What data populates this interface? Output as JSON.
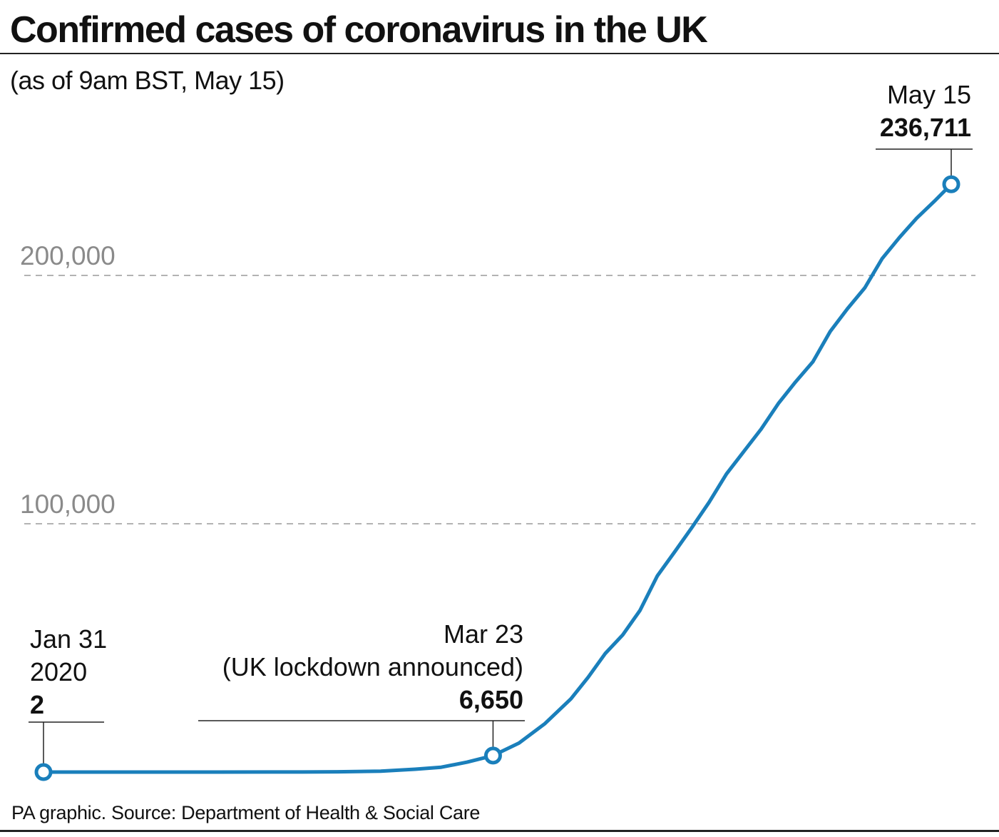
{
  "title": "Confirmed cases of coronavirus in the UK",
  "subtitle": "(as of 9am BST, May 15)",
  "source": "PA graphic. Source: Department of Health & Social Care",
  "colors": {
    "line": "#1a7fbb",
    "grid": "#9a9a9a",
    "tick_text": "#8a8a8a",
    "text": "#111111"
  },
  "chart_data": {
    "type": "line",
    "title": "Confirmed cases of coronavirus in the UK",
    "subtitle": "(as of 9am BST, May 15)",
    "xlabel": "",
    "ylabel": "",
    "x_range": [
      "2020-01-31",
      "2020-05-15"
    ],
    "ylim": [
      0,
      250000
    ],
    "yticks": [
      100000,
      200000
    ],
    "ytick_labels": [
      "100,000",
      "200,000"
    ],
    "grid": "dashed horizontal lines at y ticks",
    "legend": "none",
    "series": [
      {
        "x": [
          "2020-01-31",
          "2020-02-10",
          "2020-02-20",
          "2020-03-01",
          "2020-03-05",
          "2020-03-10",
          "2020-03-14",
          "2020-03-17",
          "2020-03-20",
          "2020-03-23",
          "2020-03-26",
          "2020-03-29",
          "2020-04-01",
          "2020-04-03",
          "2020-04-05",
          "2020-04-07",
          "2020-04-09",
          "2020-04-11",
          "2020-04-13",
          "2020-04-15",
          "2020-04-17",
          "2020-04-19",
          "2020-04-21",
          "2020-04-23",
          "2020-04-25",
          "2020-04-27",
          "2020-04-29",
          "2020-05-01",
          "2020-05-03",
          "2020-05-05",
          "2020-05-07",
          "2020-05-09",
          "2020-05-11",
          "2020-05-13",
          "2020-05-15"
        ],
        "y": [
          2,
          9,
          9,
          36,
          115,
          373,
          1140,
          1950,
          3983,
          6650,
          11658,
          19522,
          29474,
          38168,
          47806,
          55242,
          65077,
          78991,
          88621,
          98476,
          108692,
          120067,
          129044,
          138078,
          148377,
          157149,
          165221,
          177454,
          186599,
          194990,
          206715,
          215260,
          223060,
          229705,
          236711
        ]
      }
    ],
    "annotations": [
      {
        "date": "2020-01-31",
        "lines": [
          "Jan 31",
          "2020"
        ],
        "value": "2"
      },
      {
        "date": "2020-03-23",
        "lines": [
          "Mar 23",
          "(UK lockdown announced)"
        ],
        "value": "6,650"
      },
      {
        "date": "2020-05-15",
        "lines": [
          "May 15"
        ],
        "value": "236,711"
      }
    ]
  }
}
